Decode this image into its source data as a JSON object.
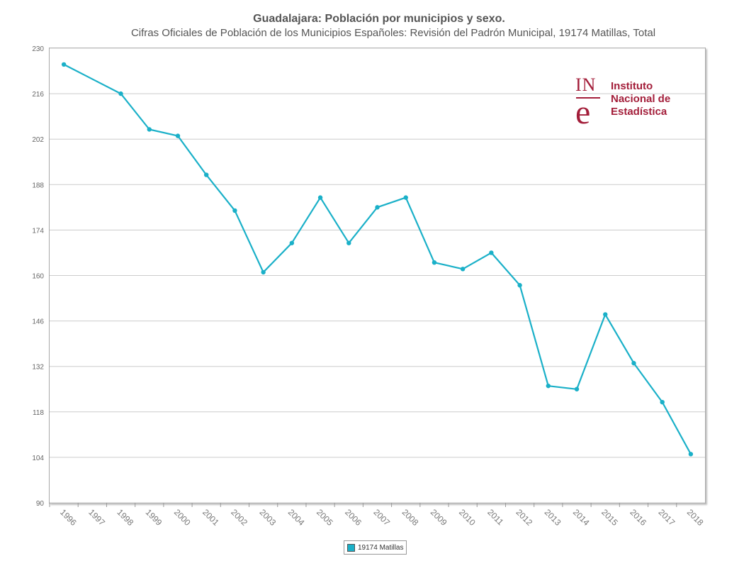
{
  "chart_data": {
    "type": "line",
    "title": "Guadalajara: Población por municipios y sexo.",
    "subtitle": "Cifras Oficiales de Población de los Municipios Españoles: Revisión del Padrón Municipal, 19174 Matillas, Total",
    "categories": [
      "1996",
      "1997",
      "1998",
      "1999",
      "2000",
      "2001",
      "2002",
      "2003",
      "2004",
      "2005",
      "2006",
      "2007",
      "2008",
      "2009",
      "2010",
      "2011",
      "2012",
      "2013",
      "2014",
      "2015",
      "2016",
      "2017",
      "2018"
    ],
    "series": [
      {
        "name": "19174 Matillas",
        "color": "#1ab0c8",
        "values": [
          225,
          null,
          216,
          205,
          203,
          191,
          180,
          161,
          170,
          184,
          170,
          181,
          184,
          164,
          162,
          167,
          157,
          126,
          125,
          148,
          133,
          121,
          105
        ]
      }
    ],
    "yticks": [
      90,
      104,
      118,
      132,
      146,
      160,
      174,
      188,
      202,
      216,
      230
    ],
    "ylim": [
      90,
      230
    ],
    "grid": true,
    "legend_position": "bottom-center",
    "xlabel": "",
    "ylabel": ""
  },
  "logo": {
    "mark_top": "IN",
    "mark_bottom": "e",
    "line1": "Instituto",
    "line2": "Nacional de",
    "line3": "Estadística",
    "color": "#a31e3a"
  }
}
